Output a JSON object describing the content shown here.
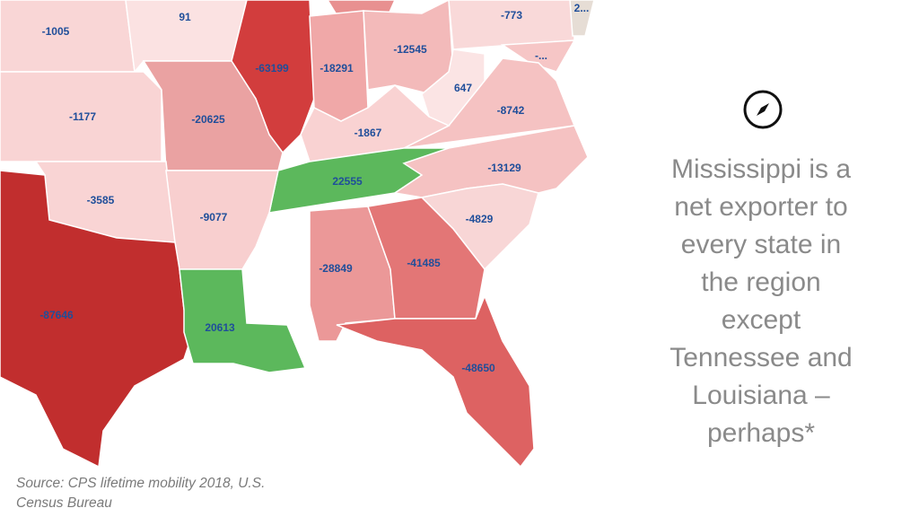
{
  "map": {
    "regions": [
      {
        "label": -1005,
        "color": "#f9d6d6"
      },
      {
        "label": 91,
        "color": "#fbe2e2"
      },
      {
        "label": -63199,
        "color": "#d23d3d"
      },
      {
        "label": -18291,
        "color": "#f0a8a8"
      },
      {
        "label": -12545,
        "color": "#f3baba"
      },
      {
        "label": -773,
        "color": "#f9d9d9"
      },
      {
        "label": "2...",
        "color": "#e6ddd5"
      },
      {
        "label": "-...",
        "color": "#f6c6c6"
      },
      {
        "label": 647,
        "color": "#fbe4e4"
      },
      {
        "label": -8742,
        "color": "#f5c2c2"
      },
      {
        "label": -1177,
        "color": "#f9d4d4"
      },
      {
        "label": -20625,
        "color": "#eaa2a2"
      },
      {
        "label": -1867,
        "color": "#f9d2d2"
      },
      {
        "label": 22555,
        "color": "#5cb85c"
      },
      {
        "label": -13129,
        "color": "#f5c2c2"
      },
      {
        "label": -3585,
        "color": "#f9d4d4"
      },
      {
        "label": -9077,
        "color": "#f8cfcf"
      },
      {
        "label": -4829,
        "color": "#f8d6d6"
      },
      {
        "label": -28849,
        "color": "#eb9898"
      },
      {
        "label": -41485,
        "color": "#e37676"
      },
      {
        "label": -87646,
        "color": "#c12e2e"
      },
      {
        "label": 20613,
        "color": "#5cb85c"
      },
      {
        "label": -48650,
        "color": "#dd6262"
      }
    ]
  },
  "note": {
    "lines": [
      "Mississippi is a",
      "net exporter to",
      "every state in",
      "the region",
      "except",
      "Tennessee and",
      "Louisiana –",
      "perhaps*"
    ]
  },
  "source": "Source: CPS lifetime mobility 2018, U.S. Census Bureau"
}
